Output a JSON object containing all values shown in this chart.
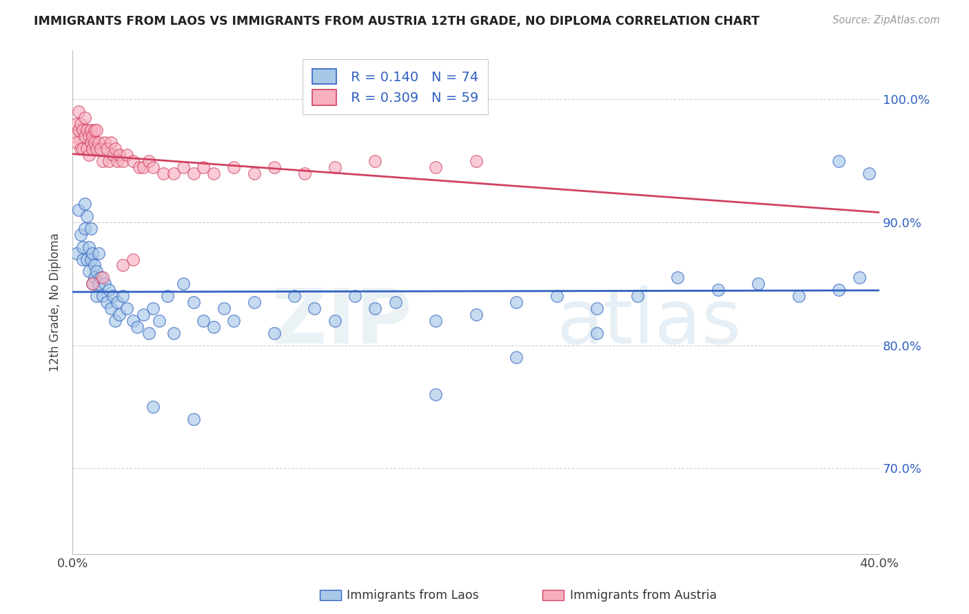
{
  "title": "IMMIGRANTS FROM LAOS VS IMMIGRANTS FROM AUSTRIA 12TH GRADE, NO DIPLOMA CORRELATION CHART",
  "source": "Source: ZipAtlas.com",
  "ylabel": "12th Grade, No Diploma",
  "xmin": 0.0,
  "xmax": 0.4,
  "ymin": 0.63,
  "ymax": 1.04,
  "y_ticks": [
    0.7,
    0.8,
    0.9,
    1.0
  ],
  "y_tick_labels": [
    "70.0%",
    "80.0%",
    "90.0%",
    "100.0%"
  ],
  "laos_R": 0.14,
  "laos_N": 74,
  "austria_R": 0.309,
  "austria_N": 59,
  "laos_color": "#a8c8e8",
  "austria_color": "#f8b0c0",
  "laos_line_color": "#3060c0",
  "austria_line_color": "#d04060",
  "legend_label_laos": "Immigrants from Laos",
  "legend_label_austria": "Immigrants from Austria",
  "laos_x": [
    0.002,
    0.003,
    0.004,
    0.005,
    0.005,
    0.006,
    0.006,
    0.007,
    0.007,
    0.008,
    0.008,
    0.009,
    0.009,
    0.01,
    0.01,
    0.011,
    0.011,
    0.012,
    0.012,
    0.013,
    0.013,
    0.014,
    0.015,
    0.016,
    0.017,
    0.018,
    0.019,
    0.02,
    0.021,
    0.022,
    0.023,
    0.025,
    0.027,
    0.03,
    0.032,
    0.035,
    0.038,
    0.04,
    0.043,
    0.047,
    0.05,
    0.055,
    0.06,
    0.065,
    0.07,
    0.075,
    0.08,
    0.09,
    0.1,
    0.11,
    0.12,
    0.13,
    0.14,
    0.15,
    0.16,
    0.18,
    0.2,
    0.22,
    0.24,
    0.26,
    0.28,
    0.3,
    0.32,
    0.34,
    0.36,
    0.38,
    0.39,
    0.22,
    0.18,
    0.26,
    0.06,
    0.04,
    0.38,
    0.395
  ],
  "laos_y": [
    0.875,
    0.91,
    0.89,
    0.88,
    0.87,
    0.915,
    0.895,
    0.905,
    0.87,
    0.88,
    0.86,
    0.895,
    0.87,
    0.875,
    0.85,
    0.865,
    0.855,
    0.86,
    0.84,
    0.875,
    0.85,
    0.855,
    0.84,
    0.85,
    0.835,
    0.845,
    0.83,
    0.84,
    0.82,
    0.835,
    0.825,
    0.84,
    0.83,
    0.82,
    0.815,
    0.825,
    0.81,
    0.83,
    0.82,
    0.84,
    0.81,
    0.85,
    0.835,
    0.82,
    0.815,
    0.83,
    0.82,
    0.835,
    0.81,
    0.84,
    0.83,
    0.82,
    0.84,
    0.83,
    0.835,
    0.82,
    0.825,
    0.835,
    0.84,
    0.83,
    0.84,
    0.855,
    0.845,
    0.85,
    0.84,
    0.845,
    0.855,
    0.79,
    0.76,
    0.81,
    0.74,
    0.75,
    0.95,
    0.94
  ],
  "austria_x": [
    0.001,
    0.002,
    0.002,
    0.003,
    0.003,
    0.004,
    0.004,
    0.005,
    0.005,
    0.006,
    0.006,
    0.007,
    0.007,
    0.008,
    0.008,
    0.009,
    0.009,
    0.01,
    0.01,
    0.011,
    0.011,
    0.012,
    0.012,
    0.013,
    0.014,
    0.015,
    0.016,
    0.017,
    0.018,
    0.019,
    0.02,
    0.021,
    0.022,
    0.023,
    0.025,
    0.027,
    0.03,
    0.033,
    0.035,
    0.038,
    0.04,
    0.045,
    0.05,
    0.055,
    0.06,
    0.065,
    0.07,
    0.08,
    0.09,
    0.1,
    0.115,
    0.13,
    0.15,
    0.18,
    0.2,
    0.03,
    0.025,
    0.015,
    0.01
  ],
  "austria_y": [
    0.97,
    0.98,
    0.965,
    0.99,
    0.975,
    0.98,
    0.96,
    0.975,
    0.96,
    0.985,
    0.97,
    0.975,
    0.96,
    0.97,
    0.955,
    0.975,
    0.965,
    0.97,
    0.96,
    0.965,
    0.975,
    0.96,
    0.975,
    0.965,
    0.96,
    0.95,
    0.965,
    0.96,
    0.95,
    0.965,
    0.955,
    0.96,
    0.95,
    0.955,
    0.95,
    0.955,
    0.95,
    0.945,
    0.945,
    0.95,
    0.945,
    0.94,
    0.94,
    0.945,
    0.94,
    0.945,
    0.94,
    0.945,
    0.94,
    0.945,
    0.94,
    0.945,
    0.95,
    0.945,
    0.95,
    0.87,
    0.865,
    0.855,
    0.85
  ]
}
